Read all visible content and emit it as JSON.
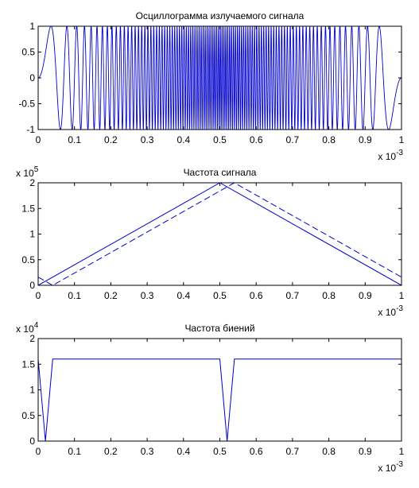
{
  "chart_data": [
    {
      "type": "line",
      "title": "Осциллограмма излучаемого сигнала",
      "xlim": [
        0,
        1
      ],
      "ylim": [
        -1,
        1
      ],
      "x_ticks": [
        "0",
        "0.1",
        "0.2",
        "0.3",
        "0.4",
        "0.5",
        "0.6",
        "0.7",
        "0.8",
        "0.9",
        "1"
      ],
      "y_ticks": [
        "-1",
        "-0.5",
        "0",
        "0.5",
        "1"
      ],
      "x_exponent": {
        "base": "x 10",
        "power": "-3"
      },
      "y_exponent": null,
      "signal": {
        "kind": "triangular-chirp",
        "f_min": 0,
        "f_max": 200000.0,
        "duration": 0.001
      },
      "series": [
        {
          "style": "solid",
          "color": "#0000cc"
        }
      ]
    },
    {
      "type": "line",
      "title": "Частота сигнала",
      "xlim": [
        0,
        1
      ],
      "ylim": [
        0,
        2
      ],
      "x_ticks": [
        "0",
        "0.1",
        "0.2",
        "0.3",
        "0.4",
        "0.5",
        "0.6",
        "0.7",
        "0.8",
        "0.9",
        "1"
      ],
      "y_ticks": [
        "0",
        "0.5",
        "1",
        "1.5",
        "2"
      ],
      "x_exponent": {
        "base": "x 10",
        "power": "-3"
      },
      "y_exponent": {
        "base": "x 10",
        "power": "5"
      },
      "series": [
        {
          "style": "solid",
          "color": "#0000cc",
          "x": [
            0,
            0.5,
            1
          ],
          "y": [
            0,
            2,
            0
          ]
        },
        {
          "style": "dashed",
          "color": "#0000cc",
          "x": [
            0,
            0.04,
            0.54,
            1
          ],
          "y": [
            0.16,
            0,
            2,
            0.16
          ]
        }
      ]
    },
    {
      "type": "line",
      "title": "Частота биений",
      "xlim": [
        0,
        1
      ],
      "ylim": [
        0,
        2
      ],
      "x_ticks": [
        "0",
        "0.1",
        "0.2",
        "0.3",
        "0.4",
        "0.5",
        "0.6",
        "0.7",
        "0.8",
        "0.9",
        "1"
      ],
      "y_ticks": [
        "0",
        "0.5",
        "1",
        "1.5",
        "2"
      ],
      "x_exponent": {
        "base": "x 10",
        "power": "-3"
      },
      "y_exponent": {
        "base": "x 10",
        "power": "4"
      },
      "series": [
        {
          "style": "solid",
          "color": "#0000cc",
          "x": [
            0,
            0.02,
            0.04,
            0.5,
            0.52,
            0.54,
            1
          ],
          "y": [
            1.6,
            0,
            1.6,
            1.6,
            0,
            1.6,
            1.6
          ]
        }
      ]
    }
  ]
}
